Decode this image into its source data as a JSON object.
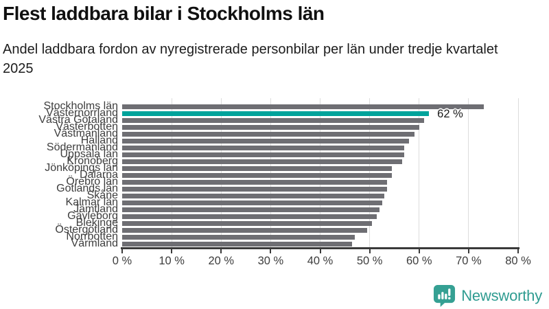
{
  "header": {
    "title": "Flest laddbara bilar i Stockholms län",
    "subtitle": "Andel laddbara fordon av nyregistrerade personbilar per län under tredje kvartalet 2025"
  },
  "chart_data": {
    "type": "bar",
    "orientation": "horizontal",
    "title": "Flest laddbara bilar i Stockholms län",
    "xlabel": "",
    "ylabel": "",
    "xlim": [
      0,
      80
    ],
    "x_ticks": [
      0,
      10,
      20,
      30,
      40,
      50,
      60,
      70,
      80
    ],
    "x_tick_labels": [
      "0 %",
      "10 %",
      "20 %",
      "30 %",
      "40 %",
      "50 %",
      "60 %",
      "70 %",
      "80 %"
    ],
    "grid": "vertical-gridlines-at-ticks",
    "legend": "none",
    "categories": [
      "Stockholms län",
      "Västernorrland",
      "Västra Götaland",
      "Västerbotten",
      "Västmanland",
      "Halland",
      "Södermanland",
      "Uppsala län",
      "Kronoberg",
      "Jönköpings län",
      "Dalarna",
      "Örebro län",
      "Gotlands län",
      "Skåne",
      "Kalmar län",
      "Jämtland",
      "Gävleborg",
      "Blekinge",
      "Östergötland",
      "Norrbotten",
      "Värmland"
    ],
    "values": [
      73,
      62,
      61,
      60,
      59,
      58,
      57,
      57,
      56.5,
      54.5,
      54.5,
      53.5,
      53.5,
      53,
      52.5,
      52,
      51.5,
      50.5,
      49.5,
      47,
      46.5
    ],
    "unit": "%",
    "bar_color": "#6e6e73",
    "highlight": {
      "category": "Västernorrland",
      "color": "#00a39b",
      "value_label": "62 %"
    },
    "colors": {
      "gridline": "#dcdcdc",
      "axis": "#3a3a3a",
      "tick_label": "#3d3d3d",
      "y_label": "#3d3d3d"
    }
  },
  "footer": {
    "brand": "Newsworthy",
    "brand_color": "#2f9c91",
    "logo_icon": "bar-chart-speech-bubble-icon",
    "logo_icon_color": "#35a093"
  }
}
